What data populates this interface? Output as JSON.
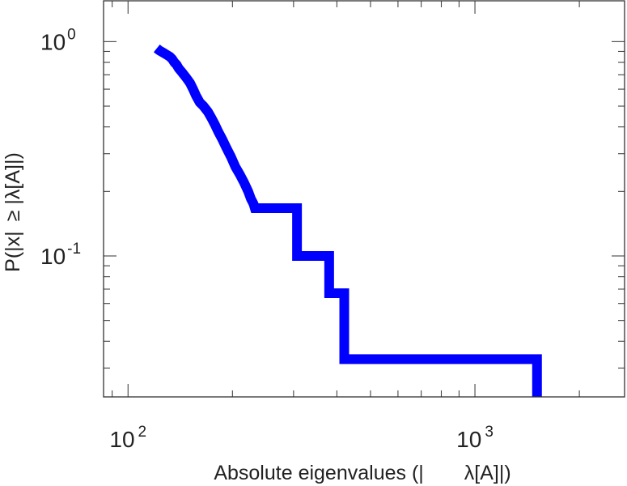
{
  "chart_data": {
    "type": "line",
    "style": "step",
    "xscale": "log",
    "yscale": "log",
    "xlim": [
      85,
      2700
    ],
    "ylim": [
      0.022,
      1.55
    ],
    "grid": false,
    "title": "",
    "xlabel_parts": [
      "Absolute eigenvalues (|",
      "λ[A]|)"
    ],
    "ylabel_parts": [
      "P(|x|",
      "≥",
      "|",
      "λ[A]|)"
    ],
    "x_ticks": [
      {
        "value": 100,
        "base": "10",
        "exp": "2"
      },
      {
        "value": 1000,
        "base": "10",
        "exp": "3"
      }
    ],
    "y_ticks": [
      {
        "value": 1,
        "base": "10",
        "exp": "0"
      },
      {
        "value": 0.1,
        "base": "10",
        "exp": "-1"
      }
    ],
    "series": [
      {
        "color": "#0000ff",
        "x": [
          121,
          123,
          126,
          129,
          132,
          134,
          136,
          138,
          140,
          143,
          147,
          151,
          154,
          157,
          161,
          165,
          170,
          174,
          178,
          182,
          187,
          192,
          198,
          204,
          210,
          216,
          222,
          226,
          230,
          232,
          240,
          260,
          280,
          300,
          307,
          307,
          340,
          380,
          380,
          420,
          420,
          600,
          900,
          1200,
          1500,
          1510,
          1510
        ],
        "y": [
          0.93,
          0.91,
          0.89,
          0.87,
          0.85,
          0.83,
          0.8,
          0.78,
          0.75,
          0.72,
          0.68,
          0.64,
          0.6,
          0.56,
          0.52,
          0.5,
          0.47,
          0.44,
          0.41,
          0.38,
          0.35,
          0.32,
          0.29,
          0.26,
          0.24,
          0.22,
          0.2,
          0.185,
          0.175,
          0.167,
          0.167,
          0.167,
          0.167,
          0.167,
          0.167,
          0.1,
          0.1,
          0.1,
          0.067,
          0.067,
          0.033,
          0.033,
          0.033,
          0.033,
          0.033,
          0.033,
          0.022
        ]
      }
    ]
  }
}
